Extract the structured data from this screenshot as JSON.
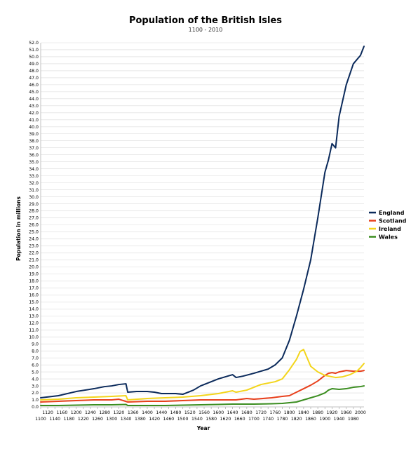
{
  "chart_data": {
    "type": "line",
    "title": "Population of the British Isles",
    "subtitle": "1100 - 2010",
    "xlabel": "Year",
    "ylabel": "Population in millions",
    "xlim": [
      1100,
      2010
    ],
    "ylim": [
      0,
      52
    ],
    "y_tick_step": 1,
    "x_ticks_top": [
      1120,
      1160,
      1200,
      1240,
      1280,
      1320,
      1360,
      1400,
      1440,
      1480,
      1520,
      1560,
      1600,
      1640,
      1680,
      1720,
      1760,
      1800,
      1840,
      1880,
      1920,
      1960,
      2000
    ],
    "x_ticks_bottom": [
      1100,
      1140,
      1180,
      1220,
      1260,
      1300,
      1340,
      1380,
      1420,
      1460,
      1500,
      1540,
      1580,
      1620,
      1660,
      1700,
      1740,
      1780,
      1820,
      1860,
      1900,
      1940,
      1980
    ],
    "grid": true,
    "legend_position": "right",
    "series": [
      {
        "name": "England",
        "color": "#0b2a5b",
        "points": [
          [
            1100,
            1.3
          ],
          [
            1150,
            1.6
          ],
          [
            1200,
            2.2
          ],
          [
            1250,
            2.6
          ],
          [
            1280,
            2.9
          ],
          [
            1300,
            3.0
          ],
          [
            1320,
            3.2
          ],
          [
            1340,
            3.3
          ],
          [
            1345,
            2.1
          ],
          [
            1370,
            2.2
          ],
          [
            1400,
            2.2
          ],
          [
            1420,
            2.1
          ],
          [
            1440,
            1.9
          ],
          [
            1480,
            1.9
          ],
          [
            1500,
            1.8
          ],
          [
            1530,
            2.4
          ],
          [
            1550,
            3.0
          ],
          [
            1580,
            3.6
          ],
          [
            1600,
            4.0
          ],
          [
            1620,
            4.3
          ],
          [
            1640,
            4.6
          ],
          [
            1650,
            4.2
          ],
          [
            1670,
            4.4
          ],
          [
            1700,
            4.8
          ],
          [
            1720,
            5.1
          ],
          [
            1740,
            5.4
          ],
          [
            1760,
            6.0
          ],
          [
            1780,
            7.0
          ],
          [
            1800,
            9.5
          ],
          [
            1820,
            13.0
          ],
          [
            1840,
            16.8
          ],
          [
            1860,
            21.0
          ],
          [
            1880,
            27.0
          ],
          [
            1900,
            33.5
          ],
          [
            1910,
            35.3
          ],
          [
            1920,
            37.6
          ],
          [
            1930,
            37.0
          ],
          [
            1940,
            41.5
          ],
          [
            1960,
            46.0
          ],
          [
            1980,
            49.0
          ],
          [
            2000,
            50.2
          ],
          [
            2010,
            51.5
          ]
        ]
      },
      {
        "name": "Scotland",
        "color": "#e8401c",
        "points": [
          [
            1100,
            0.7
          ],
          [
            1150,
            0.8
          ],
          [
            1200,
            0.9
          ],
          [
            1250,
            1.0
          ],
          [
            1300,
            1.0
          ],
          [
            1320,
            1.1
          ],
          [
            1345,
            0.7
          ],
          [
            1400,
            0.8
          ],
          [
            1450,
            0.8
          ],
          [
            1500,
            0.9
          ],
          [
            1550,
            1.0
          ],
          [
            1600,
            1.0
          ],
          [
            1650,
            1.0
          ],
          [
            1680,
            1.2
          ],
          [
            1700,
            1.1
          ],
          [
            1750,
            1.3
          ],
          [
            1780,
            1.5
          ],
          [
            1800,
            1.6
          ],
          [
            1820,
            2.1
          ],
          [
            1840,
            2.6
          ],
          [
            1860,
            3.1
          ],
          [
            1880,
            3.7
          ],
          [
            1900,
            4.5
          ],
          [
            1910,
            4.8
          ],
          [
            1920,
            4.9
          ],
          [
            1930,
            4.8
          ],
          [
            1940,
            5.0
          ],
          [
            1950,
            5.1
          ],
          [
            1960,
            5.2
          ],
          [
            1980,
            5.1
          ],
          [
            2000,
            5.1
          ],
          [
            2010,
            5.2
          ]
        ]
      },
      {
        "name": "Ireland",
        "color": "#f3d51b",
        "points": [
          [
            1100,
            1.0
          ],
          [
            1150,
            1.1
          ],
          [
            1200,
            1.3
          ],
          [
            1250,
            1.4
          ],
          [
            1300,
            1.5
          ],
          [
            1340,
            1.6
          ],
          [
            1345,
            1.0
          ],
          [
            1400,
            1.2
          ],
          [
            1450,
            1.3
          ],
          [
            1500,
            1.4
          ],
          [
            1550,
            1.6
          ],
          [
            1600,
            1.9
          ],
          [
            1640,
            2.3
          ],
          [
            1650,
            2.1
          ],
          [
            1680,
            2.4
          ],
          [
            1700,
            2.8
          ],
          [
            1720,
            3.2
          ],
          [
            1740,
            3.4
          ],
          [
            1760,
            3.6
          ],
          [
            1780,
            4.0
          ],
          [
            1800,
            5.3
          ],
          [
            1820,
            6.8
          ],
          [
            1830,
            7.9
          ],
          [
            1840,
            8.2
          ],
          [
            1860,
            5.8
          ],
          [
            1880,
            5.0
          ],
          [
            1900,
            4.5
          ],
          [
            1920,
            4.3
          ],
          [
            1930,
            4.2
          ],
          [
            1950,
            4.3
          ],
          [
            1970,
            4.6
          ],
          [
            1990,
            5.1
          ],
          [
            2000,
            5.6
          ],
          [
            2010,
            6.2
          ]
        ]
      },
      {
        "name": "Wales",
        "color": "#3a8d1f",
        "points": [
          [
            1100,
            0.2
          ],
          [
            1150,
            0.2
          ],
          [
            1200,
            0.25
          ],
          [
            1250,
            0.3
          ],
          [
            1300,
            0.3
          ],
          [
            1340,
            0.35
          ],
          [
            1345,
            0.2
          ],
          [
            1400,
            0.2
          ],
          [
            1450,
            0.2
          ],
          [
            1500,
            0.25
          ],
          [
            1550,
            0.3
          ],
          [
            1600,
            0.35
          ],
          [
            1640,
            0.4
          ],
          [
            1700,
            0.4
          ],
          [
            1750,
            0.45
          ],
          [
            1780,
            0.5
          ],
          [
            1800,
            0.6
          ],
          [
            1820,
            0.7
          ],
          [
            1840,
            1.0
          ],
          [
            1860,
            1.3
          ],
          [
            1880,
            1.6
          ],
          [
            1900,
            2.0
          ],
          [
            1910,
            2.4
          ],
          [
            1920,
            2.6
          ],
          [
            1940,
            2.5
          ],
          [
            1960,
            2.6
          ],
          [
            1980,
            2.8
          ],
          [
            2000,
            2.9
          ],
          [
            2010,
            3.0
          ]
        ]
      }
    ]
  }
}
